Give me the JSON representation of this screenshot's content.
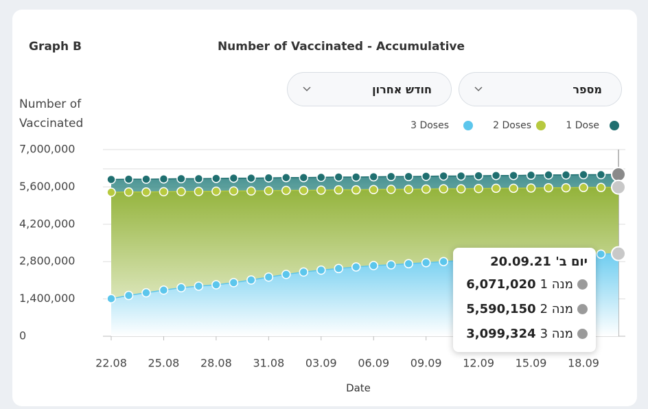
{
  "header": {
    "label": "Graph B"
  },
  "filters": {
    "metric": "מספר",
    "period": "חודש אחרון"
  },
  "chart_data": {
    "type": "area-line",
    "title": "Number of Vaccinated - Accumulative",
    "y_label": "Number of\nVaccinated",
    "x_label": "Date",
    "categories": [
      "22.08",
      null,
      null,
      "25.08",
      null,
      null,
      "28.08",
      null,
      null,
      "31.08",
      null,
      null,
      "03.09",
      null,
      null,
      "06.09",
      null,
      null,
      "09.09",
      null,
      null,
      "12.09",
      null,
      null,
      "15.09",
      null,
      null,
      "18.09",
      null,
      null
    ],
    "ylim": [
      0,
      7000000
    ],
    "yticks": [
      0,
      {
        "value": 1400000,
        "label": "1,400,000"
      },
      {
        "value": 2800000,
        "label": "2,800,000"
      },
      {
        "value": 4200000,
        "label": "4,200,000"
      },
      {
        "value": 5600000,
        "label": "5,600,000"
      },
      {
        "value": 7000000,
        "label": "7,000,000"
      }
    ],
    "grid": true,
    "series": [
      {
        "name": "1 Dose",
        "color": "#1f6f70",
        "values": [
          5880000,
          5890000,
          5890000,
          5900000,
          5910000,
          5910000,
          5920000,
          5930000,
          5930000,
          5940000,
          5950000,
          5950000,
          5960000,
          5970000,
          5970000,
          5980000,
          5990000,
          5990000,
          6000000,
          6010000,
          6010000,
          6020000,
          6030000,
          6030000,
          6040000,
          6050000,
          6050000,
          6060000,
          6060000,
          6071020
        ]
      },
      {
        "name": "2 Doses",
        "color": "#b7c93f",
        "values": [
          5400000,
          5410000,
          5410000,
          5420000,
          5430000,
          5430000,
          5440000,
          5450000,
          5450000,
          5460000,
          5470000,
          5470000,
          5480000,
          5490000,
          5490000,
          5500000,
          5510000,
          5510000,
          5520000,
          5530000,
          5530000,
          5540000,
          5550000,
          5550000,
          5560000,
          5570000,
          5570000,
          5580000,
          5580000,
          5590150
        ]
      },
      {
        "name": "3 Doses",
        "color": "#5cc6ec",
        "values": [
          1410000,
          1530000,
          1630000,
          1730000,
          1820000,
          1880000,
          1930000,
          2010000,
          2110000,
          2220000,
          2320000,
          2410000,
          2480000,
          2540000,
          2600000,
          2650000,
          2680000,
          2720000,
          2760000,
          2800000,
          2840000,
          2880000,
          2920000,
          2950000,
          2980000,
          3010000,
          3040000,
          3060000,
          3080000,
          3099324
        ]
      }
    ],
    "tooltip": {
      "title": "יום ב' 20.09.21",
      "rows": [
        {
          "value_label": "6,071,020",
          "name": "מנה 1"
        },
        {
          "value_label": "5,590,150",
          "name": "מנה 2"
        },
        {
          "value_label": "3,099,324",
          "name": "מנה 3"
        }
      ]
    }
  }
}
